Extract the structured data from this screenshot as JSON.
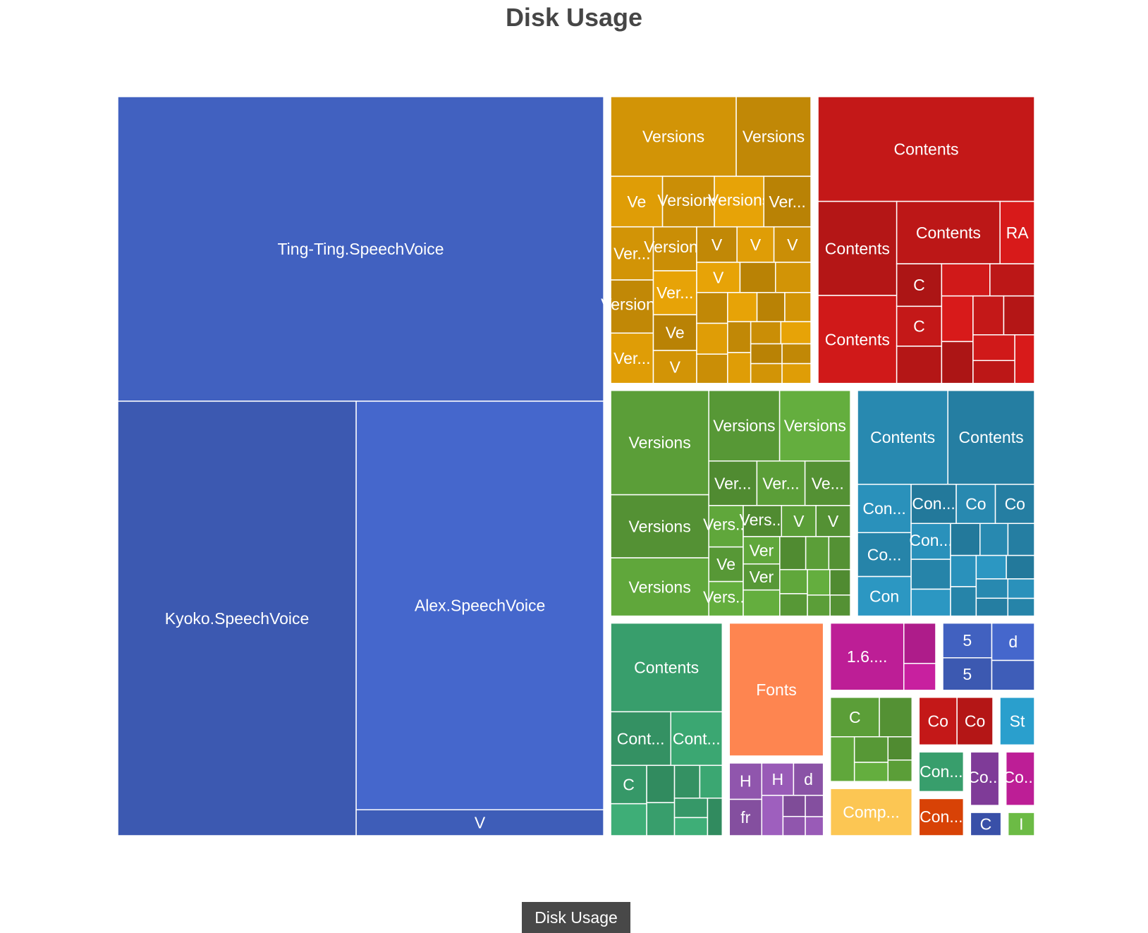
{
  "chart_data": {
    "type": "treemap",
    "title": "Disk Usage",
    "breadcrumb": "Disk Usage",
    "groups": [
      {
        "color": "#4161c0",
        "children": [
          {
            "label": "Ting-Ting.SpeechVoice",
            "value": 6000
          },
          {
            "label": "Alex.SpeechVoice",
            "value": 4100
          },
          {
            "label": "Kyoko.SpeechVoice",
            "value": 4200
          },
          {
            "label": "V",
            "value": 260
          }
        ]
      },
      {
        "color": "#d29406",
        "children": [
          {
            "label": "Versions",
            "value": 420
          },
          {
            "label": "Versions",
            "value": 250
          },
          {
            "label": "Ve",
            "value": 110
          },
          {
            "label": "Versions",
            "value": 110
          },
          {
            "label": "Ver...",
            "value": 100
          },
          {
            "label": "Ve",
            "value": 65
          },
          {
            "label": "V",
            "value": 60
          },
          {
            "label": "V",
            "value": 60
          },
          {
            "label": "V",
            "value": 55
          },
          {
            "label": "Versions",
            "value": 105
          },
          {
            "label": "Ver...",
            "value": 95
          },
          {
            "label": "V",
            "value": 55
          },
          {
            "label": "V",
            "value": 55
          },
          {
            "label": "",
            "value": 45
          },
          {
            "label": "",
            "value": 45
          },
          {
            "label": "",
            "value": 40
          },
          {
            "label": "Versions",
            "value": 95
          },
          {
            "label": "Ver...",
            "value": 90
          },
          {
            "label": "Versions",
            "value": 80
          },
          {
            "label": "Ver...",
            "value": 80
          },
          {
            "label": "",
            "value": 40
          },
          {
            "label": "",
            "value": 38
          },
          {
            "label": "",
            "value": 36
          },
          {
            "label": "",
            "value": 34
          },
          {
            "label": "",
            "value": 32
          },
          {
            "label": "",
            "value": 30
          },
          {
            "label": "",
            "value": 30
          },
          {
            "label": "",
            "value": 28
          },
          {
            "label": "",
            "value": 28
          },
          {
            "label": "",
            "value": 26
          },
          {
            "label": "",
            "value": 26
          },
          {
            "label": "",
            "value": 24
          },
          {
            "label": "",
            "value": 24
          }
        ]
      },
      {
        "color": "#c41818",
        "children": [
          {
            "label": "Contents",
            "value": 950
          },
          {
            "label": "Contents",
            "value": 310
          },
          {
            "label": "Contents",
            "value": 290
          },
          {
            "label": "Contents",
            "value": 270
          },
          {
            "label": "RA",
            "value": 90
          },
          {
            "label": "",
            "value": 65
          },
          {
            "label": "",
            "value": 60
          },
          {
            "label": "C",
            "value": 80
          },
          {
            "label": "C",
            "value": 75
          },
          {
            "label": "",
            "value": 70
          },
          {
            "label": "",
            "value": 60
          },
          {
            "label": "",
            "value": 55
          },
          {
            "label": "",
            "value": 50
          },
          {
            "label": "",
            "value": 50
          },
          {
            "label": "",
            "value": 45
          },
          {
            "label": "",
            "value": 40
          },
          {
            "label": "",
            "value": 40
          }
        ]
      },
      {
        "color": "#5b9e38",
        "children": [
          {
            "label": "Versions",
            "value": 430
          },
          {
            "label": "Versions",
            "value": 260
          },
          {
            "label": "Versions",
            "value": 240
          },
          {
            "label": "Versions",
            "value": 210
          },
          {
            "label": "Versions",
            "value": 210
          },
          {
            "label": "Ver...",
            "value": 90
          },
          {
            "label": "Ver...",
            "value": 90
          },
          {
            "label": "Ve...",
            "value": 85
          },
          {
            "label": "Vers...",
            "value": 60
          },
          {
            "label": "Ve",
            "value": 50
          },
          {
            "label": "V",
            "value": 45
          },
          {
            "label": "V",
            "value": 45
          },
          {
            "label": "Vers...",
            "value": 50
          },
          {
            "label": "Vers...",
            "value": 50
          },
          {
            "label": "Ver",
            "value": 42
          },
          {
            "label": "Ver",
            "value": 40
          },
          {
            "label": "",
            "value": 40
          },
          {
            "label": "",
            "value": 36
          },
          {
            "label": "",
            "value": 32
          },
          {
            "label": "",
            "value": 30
          },
          {
            "label": "",
            "value": 28
          },
          {
            "label": "",
            "value": 26
          },
          {
            "label": "",
            "value": 24
          },
          {
            "label": "",
            "value": 22
          },
          {
            "label": "",
            "value": 20
          },
          {
            "label": "",
            "value": 18
          }
        ]
      },
      {
        "color": "#2889b0",
        "children": [
          {
            "label": "Contents",
            "value": 360
          },
          {
            "label": "Contents",
            "value": 345
          },
          {
            "label": "Con...",
            "value": 110
          },
          {
            "label": "Co...",
            "value": 100
          },
          {
            "label": "Con",
            "value": 90
          },
          {
            "label": "Con...",
            "value": 75
          },
          {
            "label": "Co",
            "value": 65
          },
          {
            "label": "Co",
            "value": 65
          },
          {
            "label": "Con...",
            "value": 60
          },
          {
            "label": "",
            "value": 50
          },
          {
            "label": "",
            "value": 45
          },
          {
            "label": "",
            "value": 40
          },
          {
            "label": "",
            "value": 38
          },
          {
            "label": "",
            "value": 36
          },
          {
            "label": "",
            "value": 34
          },
          {
            "label": "",
            "value": 32
          },
          {
            "label": "",
            "value": 30
          },
          {
            "label": "",
            "value": 28
          },
          {
            "label": "",
            "value": 26
          },
          {
            "label": "",
            "value": 24
          },
          {
            "label": "",
            "value": 22
          },
          {
            "label": "",
            "value": 20
          }
        ]
      },
      {
        "color": "#389e6c",
        "children": [
          {
            "label": "Contents",
            "value": 430
          },
          {
            "label": "Cont...",
            "value": 140
          },
          {
            "label": "Cont...",
            "value": 120
          },
          {
            "label": "C",
            "value": 60
          },
          {
            "label": "",
            "value": 50
          },
          {
            "label": "",
            "value": 45
          },
          {
            "label": "",
            "value": 40
          },
          {
            "label": "",
            "value": 36
          },
          {
            "label": "",
            "value": 32
          },
          {
            "label": "",
            "value": 28
          },
          {
            "label": "",
            "value": 26
          },
          {
            "label": "",
            "value": 24
          }
        ]
      },
      {
        "color": "#fe8550",
        "children": [
          {
            "label": "Fonts",
            "value": 560
          }
        ]
      },
      {
        "color": "#9056ad",
        "children": [
          {
            "label": "H",
            "value": 55
          },
          {
            "label": "H",
            "value": 48
          },
          {
            "label": "d",
            "value": 45
          },
          {
            "label": "fr",
            "value": 55
          },
          {
            "label": "",
            "value": 40
          },
          {
            "label": "",
            "value": 22
          },
          {
            "label": "",
            "value": 20
          },
          {
            "label": "",
            "value": 18
          },
          {
            "label": "",
            "value": 16
          }
        ]
      },
      {
        "color": "#bd1e96",
        "children": [
          {
            "label": "1.6....",
            "value": 230
          },
          {
            "label": "",
            "value": 60
          },
          {
            "label": "",
            "value": 40
          }
        ]
      },
      {
        "color": "#4161c0",
        "children": [
          {
            "label": "5",
            "value": 80
          },
          {
            "label": "5",
            "value": 75
          },
          {
            "label": "d",
            "value": 75
          },
          {
            "label": "",
            "value": 60
          }
        ]
      },
      {
        "color": "#5b9e38",
        "children": [
          {
            "label": "C",
            "value": 90
          },
          {
            "label": "",
            "value": 60
          },
          {
            "label": "",
            "value": 50
          },
          {
            "label": "",
            "value": 40
          },
          {
            "label": "",
            "value": 30
          },
          {
            "label": "",
            "value": 26
          },
          {
            "label": "",
            "value": 24
          }
        ]
      },
      {
        "color": "#fcc653",
        "children": [
          {
            "label": "Comp...",
            "value": 190
          }
        ]
      },
      {
        "color": "#c41818",
        "children": [
          {
            "label": "Co",
            "value": 90
          },
          {
            "label": "Co",
            "value": 85
          }
        ]
      },
      {
        "color": "#2a9fcd",
        "children": [
          {
            "label": "St",
            "value": 90
          }
        ]
      },
      {
        "color": "#389e6c",
        "children": [
          {
            "label": "Con...",
            "value": 95
          }
        ]
      },
      {
        "color": "#d84206",
        "children": [
          {
            "label": "Con...",
            "value": 90
          }
        ]
      },
      {
        "color": "#7f3b98",
        "children": [
          {
            "label": "Co...",
            "value": 85
          }
        ]
      },
      {
        "color": "#bd1e96",
        "children": [
          {
            "label": "Co...",
            "value": 85
          }
        ]
      },
      {
        "color": "#3950a8",
        "children": [
          {
            "label": "C",
            "value": 45
          }
        ]
      },
      {
        "color": "#6cbb45",
        "children": [
          {
            "label": "I",
            "value": 40
          }
        ]
      }
    ]
  }
}
